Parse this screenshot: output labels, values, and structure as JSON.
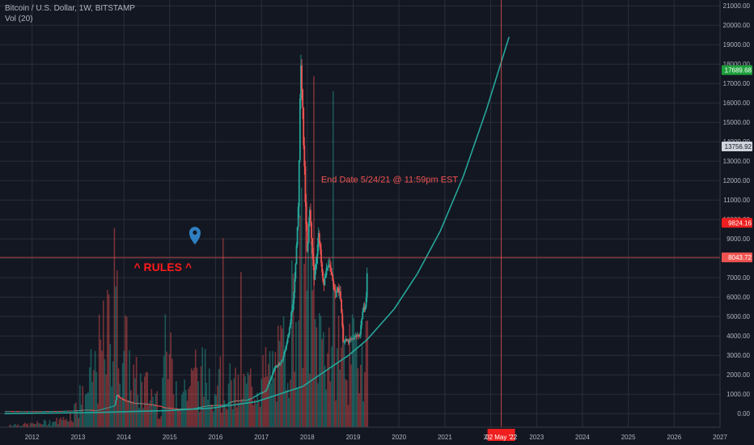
{
  "header": {
    "symbol": "Bitcoin / U.S. Dollar, 1W, BITSTAMP",
    "volume_indicator": "Vol (20)"
  },
  "chart_data": {
    "type": "candlestick",
    "x_range": [
      2011.4,
      2027.1
    ],
    "y_range": [
      -700,
      21300
    ],
    "x_ticks": [
      "2012",
      "2013",
      "2014",
      "2015",
      "2016",
      "2017",
      "2018",
      "2019",
      "2020",
      "2021",
      "2022",
      "2023",
      "2024",
      "2025",
      "2026",
      "2027"
    ],
    "y_ticks": [
      0,
      1000,
      2000,
      3000,
      4000,
      5000,
      6000,
      7000,
      8000,
      9000,
      10000,
      11000,
      12000,
      13000,
      14000,
      15000,
      16000,
      17000,
      18000,
      19000,
      20000,
      21000
    ],
    "y_tick_labels": [
      "0.00",
      "1000.00",
      "2000.00",
      "3000.00",
      "4000.00",
      "5000.00",
      "6000.00",
      "7000.00",
      "8000.00",
      "9000.00",
      "10000.00",
      "11000.00",
      "12000.00",
      "13000.00",
      "14000.00",
      "15000.00",
      "16000.00",
      "17000.00",
      "18000.00",
      "19000.00",
      "20000.00",
      "21000.00"
    ],
    "grid": true,
    "colors": {
      "background": "#131722",
      "grid": "#2a2e39",
      "up": "#26a69a",
      "down": "#ef5350",
      "curve": "#26a69a",
      "hline": "#ef5350",
      "vline": "#ef5350",
      "axis_text": "#b2b5be",
      "annotation_text": "#ef5350",
      "price_green": "#1ea03c",
      "price_grey": "#d1d4dc",
      "price_red": "#ef1f1f",
      "price_pink": "#ef5350",
      "pin": "#2f7fc1"
    },
    "price_path": [
      [
        2011.5,
        120
      ],
      [
        2012.0,
        110
      ],
      [
        2012.5,
        120
      ],
      [
        2013.0,
        150
      ],
      [
        2013.3,
        200
      ],
      [
        2013.5,
        160
      ],
      [
        2013.9,
        400
      ],
      [
        2013.95,
        1000
      ],
      [
        2014.0,
        850
      ],
      [
        2014.1,
        700
      ],
      [
        2014.3,
        550
      ],
      [
        2014.6,
        500
      ],
      [
        2014.9,
        380
      ],
      [
        2015.0,
        300
      ],
      [
        2015.3,
        250
      ],
      [
        2015.6,
        260
      ],
      [
        2015.9,
        400
      ],
      [
        2016.0,
        420
      ],
      [
        2016.3,
        450
      ],
      [
        2016.5,
        650
      ],
      [
        2016.8,
        700
      ],
      [
        2017.0,
        950
      ],
      [
        2017.2,
        1200
      ],
      [
        2017.4,
        2400
      ],
      [
        2017.55,
        2700
      ],
      [
        2017.7,
        4200
      ],
      [
        2017.8,
        6000
      ],
      [
        2017.9,
        10000
      ],
      [
        2017.96,
        18500
      ],
      [
        2018.0,
        15500
      ],
      [
        2018.05,
        11500
      ],
      [
        2018.1,
        8000
      ],
      [
        2018.15,
        10500
      ],
      [
        2018.25,
        7000
      ],
      [
        2018.35,
        9200
      ],
      [
        2018.45,
        6500
      ],
      [
        2018.55,
        7800
      ],
      [
        2018.7,
        6400
      ],
      [
        2018.82,
        6300
      ],
      [
        2018.88,
        3800
      ],
      [
        2019.0,
        3700
      ],
      [
        2019.15,
        3950
      ],
      [
        2019.25,
        4100
      ],
      [
        2019.3,
        5200
      ],
      [
        2019.38,
        5700
      ],
      [
        2019.42,
        8100
      ]
    ],
    "volume_path": [
      [
        2012.0,
        30
      ],
      [
        2012.8,
        80
      ],
      [
        2013.2,
        300
      ],
      [
        2013.9,
        1200
      ],
      [
        2014.3,
        500
      ],
      [
        2014.9,
        300
      ],
      [
        2015.0,
        800
      ],
      [
        2015.3,
        400
      ],
      [
        2016.0,
        600
      ],
      [
        2016.5,
        400
      ],
      [
        2017.0,
        500
      ],
      [
        2017.5,
        700
      ],
      [
        2017.9,
        1500
      ],
      [
        2018.0,
        1700
      ],
      [
        2018.3,
        1000
      ],
      [
        2018.9,
        900
      ],
      [
        2019.0,
        700
      ],
      [
        2019.4,
        1000
      ]
    ],
    "curve": {
      "label": "",
      "points": [
        [
          2011.5,
          0
        ],
        [
          2013.5,
          60
        ],
        [
          2015.0,
          150
        ],
        [
          2016.0,
          280
        ],
        [
          2017.0,
          620
        ],
        [
          2018.0,
          1400
        ],
        [
          2019.0,
          3000
        ],
        [
          2019.4,
          3800
        ],
        [
          2020.0,
          5400
        ],
        [
          2020.5,
          7200
        ],
        [
          2021.0,
          9400
        ],
        [
          2021.5,
          12200
        ],
        [
          2022.0,
          15600
        ],
        [
          2022.5,
          19400
        ]
      ]
    },
    "horizontal_line": {
      "value": 8043.72
    },
    "vertical_line": {
      "x": 2022.33,
      "label": "02 May '22"
    },
    "price_labels": [
      {
        "value": 17689.68,
        "text": "17689.68",
        "style": "green"
      },
      {
        "value": 13756.92,
        "text": "13756.92",
        "style": "grey"
      },
      {
        "value": 9824.16,
        "text": "9824.16",
        "style": "red"
      },
      {
        "value": 8043.72,
        "text": "8043.72",
        "style": "pink"
      }
    ],
    "annotations": [
      {
        "text": "End Date 5/24/21 @ 11:59pm EST",
        "x": 2018.4,
        "y": 11900
      },
      {
        "text": "^ RULES ^",
        "x": 2014.95,
        "y": 7350
      }
    ],
    "pin_marker": {
      "x": 2015.65,
      "y": 9200
    }
  }
}
